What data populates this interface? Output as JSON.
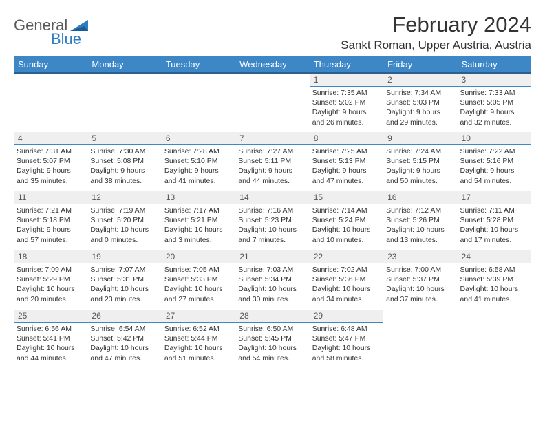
{
  "logo": {
    "text_gray": "General",
    "text_blue": "Blue"
  },
  "title": "February 2024",
  "location": "Sankt Roman, Upper Austria, Austria",
  "colors": {
    "header_bg": "#3d87c7",
    "header_border": "#2a5f8f",
    "daynum_bg": "#efefef",
    "daynum_border": "#3d87c7",
    "logo_gray": "#5a5a5a",
    "logo_blue": "#2f7cc0",
    "text": "#333333",
    "page_bg": "#ffffff"
  },
  "day_headers": [
    "Sunday",
    "Monday",
    "Tuesday",
    "Wednesday",
    "Thursday",
    "Friday",
    "Saturday"
  ],
  "weeks": [
    [
      null,
      null,
      null,
      null,
      {
        "n": "1",
        "sr": "Sunrise: 7:35 AM",
        "ss": "Sunset: 5:02 PM",
        "d1": "Daylight: 9 hours",
        "d2": "and 26 minutes."
      },
      {
        "n": "2",
        "sr": "Sunrise: 7:34 AM",
        "ss": "Sunset: 5:03 PM",
        "d1": "Daylight: 9 hours",
        "d2": "and 29 minutes."
      },
      {
        "n": "3",
        "sr": "Sunrise: 7:33 AM",
        "ss": "Sunset: 5:05 PM",
        "d1": "Daylight: 9 hours",
        "d2": "and 32 minutes."
      }
    ],
    [
      {
        "n": "4",
        "sr": "Sunrise: 7:31 AM",
        "ss": "Sunset: 5:07 PM",
        "d1": "Daylight: 9 hours",
        "d2": "and 35 minutes."
      },
      {
        "n": "5",
        "sr": "Sunrise: 7:30 AM",
        "ss": "Sunset: 5:08 PM",
        "d1": "Daylight: 9 hours",
        "d2": "and 38 minutes."
      },
      {
        "n": "6",
        "sr": "Sunrise: 7:28 AM",
        "ss": "Sunset: 5:10 PM",
        "d1": "Daylight: 9 hours",
        "d2": "and 41 minutes."
      },
      {
        "n": "7",
        "sr": "Sunrise: 7:27 AM",
        "ss": "Sunset: 5:11 PM",
        "d1": "Daylight: 9 hours",
        "d2": "and 44 minutes."
      },
      {
        "n": "8",
        "sr": "Sunrise: 7:25 AM",
        "ss": "Sunset: 5:13 PM",
        "d1": "Daylight: 9 hours",
        "d2": "and 47 minutes."
      },
      {
        "n": "9",
        "sr": "Sunrise: 7:24 AM",
        "ss": "Sunset: 5:15 PM",
        "d1": "Daylight: 9 hours",
        "d2": "and 50 minutes."
      },
      {
        "n": "10",
        "sr": "Sunrise: 7:22 AM",
        "ss": "Sunset: 5:16 PM",
        "d1": "Daylight: 9 hours",
        "d2": "and 54 minutes."
      }
    ],
    [
      {
        "n": "11",
        "sr": "Sunrise: 7:21 AM",
        "ss": "Sunset: 5:18 PM",
        "d1": "Daylight: 9 hours",
        "d2": "and 57 minutes."
      },
      {
        "n": "12",
        "sr": "Sunrise: 7:19 AM",
        "ss": "Sunset: 5:20 PM",
        "d1": "Daylight: 10 hours",
        "d2": "and 0 minutes."
      },
      {
        "n": "13",
        "sr": "Sunrise: 7:17 AM",
        "ss": "Sunset: 5:21 PM",
        "d1": "Daylight: 10 hours",
        "d2": "and 3 minutes."
      },
      {
        "n": "14",
        "sr": "Sunrise: 7:16 AM",
        "ss": "Sunset: 5:23 PM",
        "d1": "Daylight: 10 hours",
        "d2": "and 7 minutes."
      },
      {
        "n": "15",
        "sr": "Sunrise: 7:14 AM",
        "ss": "Sunset: 5:24 PM",
        "d1": "Daylight: 10 hours",
        "d2": "and 10 minutes."
      },
      {
        "n": "16",
        "sr": "Sunrise: 7:12 AM",
        "ss": "Sunset: 5:26 PM",
        "d1": "Daylight: 10 hours",
        "d2": "and 13 minutes."
      },
      {
        "n": "17",
        "sr": "Sunrise: 7:11 AM",
        "ss": "Sunset: 5:28 PM",
        "d1": "Daylight: 10 hours",
        "d2": "and 17 minutes."
      }
    ],
    [
      {
        "n": "18",
        "sr": "Sunrise: 7:09 AM",
        "ss": "Sunset: 5:29 PM",
        "d1": "Daylight: 10 hours",
        "d2": "and 20 minutes."
      },
      {
        "n": "19",
        "sr": "Sunrise: 7:07 AM",
        "ss": "Sunset: 5:31 PM",
        "d1": "Daylight: 10 hours",
        "d2": "and 23 minutes."
      },
      {
        "n": "20",
        "sr": "Sunrise: 7:05 AM",
        "ss": "Sunset: 5:33 PM",
        "d1": "Daylight: 10 hours",
        "d2": "and 27 minutes."
      },
      {
        "n": "21",
        "sr": "Sunrise: 7:03 AM",
        "ss": "Sunset: 5:34 PM",
        "d1": "Daylight: 10 hours",
        "d2": "and 30 minutes."
      },
      {
        "n": "22",
        "sr": "Sunrise: 7:02 AM",
        "ss": "Sunset: 5:36 PM",
        "d1": "Daylight: 10 hours",
        "d2": "and 34 minutes."
      },
      {
        "n": "23",
        "sr": "Sunrise: 7:00 AM",
        "ss": "Sunset: 5:37 PM",
        "d1": "Daylight: 10 hours",
        "d2": "and 37 minutes."
      },
      {
        "n": "24",
        "sr": "Sunrise: 6:58 AM",
        "ss": "Sunset: 5:39 PM",
        "d1": "Daylight: 10 hours",
        "d2": "and 41 minutes."
      }
    ],
    [
      {
        "n": "25",
        "sr": "Sunrise: 6:56 AM",
        "ss": "Sunset: 5:41 PM",
        "d1": "Daylight: 10 hours",
        "d2": "and 44 minutes."
      },
      {
        "n": "26",
        "sr": "Sunrise: 6:54 AM",
        "ss": "Sunset: 5:42 PM",
        "d1": "Daylight: 10 hours",
        "d2": "and 47 minutes."
      },
      {
        "n": "27",
        "sr": "Sunrise: 6:52 AM",
        "ss": "Sunset: 5:44 PM",
        "d1": "Daylight: 10 hours",
        "d2": "and 51 minutes."
      },
      {
        "n": "28",
        "sr": "Sunrise: 6:50 AM",
        "ss": "Sunset: 5:45 PM",
        "d1": "Daylight: 10 hours",
        "d2": "and 54 minutes."
      },
      {
        "n": "29",
        "sr": "Sunrise: 6:48 AM",
        "ss": "Sunset: 5:47 PM",
        "d1": "Daylight: 10 hours",
        "d2": "and 58 minutes."
      },
      null,
      null
    ]
  ]
}
